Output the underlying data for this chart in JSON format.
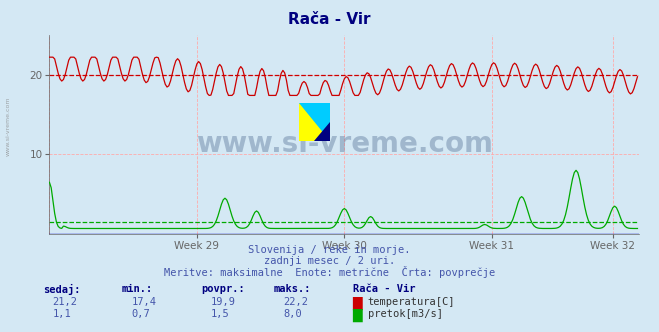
{
  "title": "Rača - Vir",
  "title_color": "#000080",
  "bg_color": "#d4e8f4",
  "plot_bg_color": "#d4e8f4",
  "grid_color": "#ffaaaa",
  "xlim": [
    0,
    336
  ],
  "ylim": [
    0,
    25
  ],
  "yticks": [
    10,
    20
  ],
  "xtick_labels": [
    "Week 29",
    "Week 30",
    "Week 31",
    "Week 32"
  ],
  "xtick_positions": [
    84,
    168,
    252,
    321
  ],
  "temp_color": "#cc0000",
  "flow_color": "#00aa00",
  "temp_avg": 19.9,
  "temp_min": 17.4,
  "temp_max": 22.2,
  "flow_avg": 1.5,
  "flow_min": 0.7,
  "flow_max": 8.0,
  "temp_dashed_y": 20.0,
  "flow_dashed_y": 1.5,
  "watermark_text": "www.si-vreme.com",
  "watermark_color": "#1a3a6a",
  "watermark_alpha": 0.28,
  "subtitle1": "Slovenija / reke in morje.",
  "subtitle2": "zadnji mesec / 2 uri.",
  "subtitle3": "Meritve: maksimalne  Enote: metrične  Črta: povprečje",
  "subtitle_color": "#4455aa",
  "table_header": [
    "sedaj:",
    "min.:",
    "povpr.:",
    "maks.:",
    "Rača - Vir"
  ],
  "table_row1": [
    "21,2",
    "17,4",
    "19,9",
    "22,2"
  ],
  "table_row2": [
    "1,1",
    "0,7",
    "1,5",
    "8,0"
  ],
  "legend1": "temperatura[C]",
  "legend2": "pretok[m3/s]",
  "table_color": "#4455aa",
  "table_header_color": "#000080",
  "n_points": 336
}
